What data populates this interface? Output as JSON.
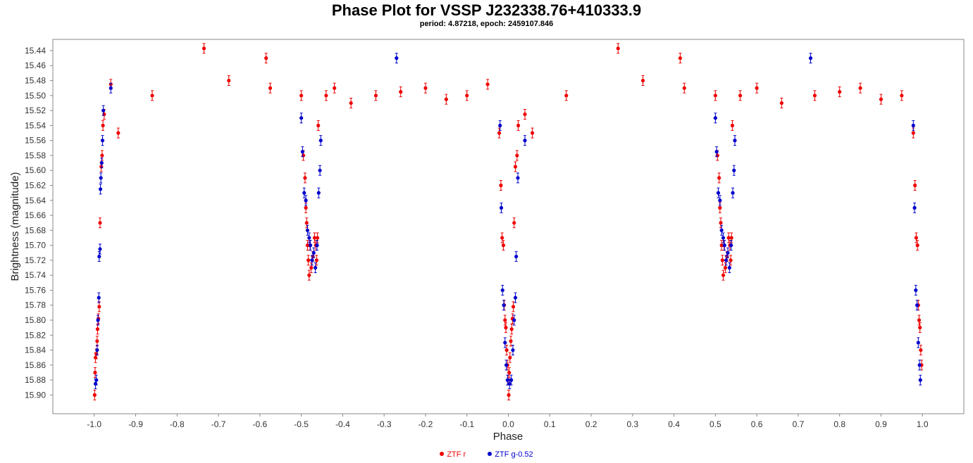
{
  "chart_data": {
    "type": "scatter",
    "title": "Phase Plot for VSSP J232338.76+410333.9",
    "subtitle": "period: 4.87218, epoch: 2459107.846",
    "xlabel": "Phase",
    "ylabel": "Brightness (magnitude)",
    "xlim": [
      -1.1,
      1.1
    ],
    "ylim": [
      15.925,
      15.425
    ],
    "y_inverted": true,
    "x_ticks": [
      "-1.0",
      "-0.9",
      "-0.8",
      "-0.7",
      "-0.6",
      "-0.5",
      "-0.4",
      "-0.3",
      "-0.2",
      "-0.1",
      "0.0",
      "0.1",
      "0.2",
      "0.3",
      "0.4",
      "0.5",
      "0.6",
      "0.7",
      "0.8",
      "0.9",
      "1.0"
    ],
    "y_ticks": [
      "15.44",
      "15.46",
      "15.48",
      "15.50",
      "15.52",
      "15.54",
      "15.56",
      "15.58",
      "15.60",
      "15.62",
      "15.64",
      "15.66",
      "15.68",
      "15.70",
      "15.72",
      "15.74",
      "15.76",
      "15.78",
      "15.80",
      "15.82",
      "15.84",
      "15.86",
      "15.88",
      "15.90"
    ],
    "grid": false,
    "legend_position": "bottom",
    "series": [
      {
        "name": "ZTF r",
        "color": "#ee0000",
        "x": [
          -0.999,
          -0.998,
          -0.997,
          -0.995,
          -0.993,
          -0.992,
          -0.99,
          -0.988,
          -0.986,
          -0.983,
          -0.981,
          -0.979,
          -0.976,
          -0.96,
          -0.942,
          -0.86,
          -0.735,
          -0.675,
          -0.585,
          -0.575,
          -0.5,
          -0.495,
          -0.491,
          -0.489,
          -0.487,
          -0.485,
          -0.483,
          -0.481,
          -0.479,
          -0.476,
          -0.472,
          -0.468,
          -0.465,
          -0.463,
          -0.461,
          -0.459,
          -0.44,
          -0.42,
          -0.38,
          -0.32,
          -0.26,
          -0.2,
          -0.15,
          -0.1,
          -0.05,
          -0.022,
          -0.018,
          -0.015,
          -0.012,
          -0.01,
          -0.008,
          -0.006,
          -0.004,
          -0.002,
          -0.001,
          0.001,
          0.002,
          0.004,
          0.006,
          0.008,
          0.01,
          0.012,
          0.014,
          0.017,
          0.021,
          0.024,
          0.04,
          0.058,
          0.14,
          0.265,
          0.325,
          0.415,
          0.425,
          0.5,
          0.505,
          0.509,
          0.511,
          0.513,
          0.515,
          0.517,
          0.519,
          0.521,
          0.524,
          0.528,
          0.532,
          0.535,
          0.537,
          0.539,
          0.541,
          0.56,
          0.6,
          0.66,
          0.74,
          0.8,
          0.85,
          0.9,
          0.95,
          0.978,
          0.982,
          0.985,
          0.988,
          0.99,
          0.992,
          0.994,
          0.996,
          0.998
        ],
        "y": [
          15.9,
          15.87,
          15.85,
          15.845,
          15.828,
          15.812,
          15.798,
          15.782,
          15.67,
          15.595,
          15.58,
          15.54,
          15.525,
          15.485,
          15.55,
          15.5,
          15.437,
          15.48,
          15.45,
          15.49,
          15.5,
          15.58,
          15.61,
          15.65,
          15.67,
          15.7,
          15.72,
          15.74,
          15.7,
          15.73,
          15.715,
          15.69,
          15.7,
          15.72,
          15.69,
          15.54,
          15.5,
          15.49,
          15.51,
          15.5,
          15.495,
          15.49,
          15.505,
          15.5,
          15.485,
          15.55,
          15.62,
          15.69,
          15.7,
          15.78,
          15.8,
          15.81,
          15.84,
          15.86,
          15.88,
          15.9,
          15.87,
          15.85,
          15.828,
          15.812,
          15.798,
          15.782,
          15.67,
          15.595,
          15.58,
          15.54,
          15.525,
          15.55,
          15.5,
          15.437,
          15.48,
          15.45,
          15.49,
          15.5,
          15.58,
          15.61,
          15.65,
          15.67,
          15.7,
          15.72,
          15.74,
          15.7,
          15.73,
          15.715,
          15.69,
          15.7,
          15.72,
          15.69,
          15.54,
          15.5,
          15.49,
          15.51,
          15.5,
          15.495,
          15.49,
          15.505,
          15.5,
          15.55,
          15.62,
          15.69,
          15.7,
          15.78,
          15.8,
          15.81,
          15.84,
          15.86
        ]
      },
      {
        "name": "ZTF g-0.52",
        "color": "#0000cc",
        "x": [
          -0.997,
          -0.995,
          -0.993,
          -0.991,
          -0.989,
          -0.988,
          -0.986,
          -0.985,
          -0.984,
          -0.982,
          -0.98,
          -0.978,
          -0.96,
          -0.5,
          -0.497,
          -0.493,
          -0.489,
          -0.485,
          -0.481,
          -0.478,
          -0.474,
          -0.47,
          -0.466,
          -0.462,
          -0.458,
          -0.455,
          -0.453,
          -0.27,
          -0.02,
          -0.017,
          -0.014,
          -0.011,
          -0.008,
          -0.005,
          -0.002,
          0.003,
          0.007,
          0.011,
          0.014,
          0.017,
          0.019,
          0.023,
          0.04,
          0.5,
          0.503,
          0.507,
          0.511,
          0.515,
          0.519,
          0.522,
          0.526,
          0.53,
          0.534,
          0.538,
          0.542,
          0.545,
          0.547,
          0.73,
          0.978,
          0.981,
          0.984,
          0.987,
          0.99,
          0.993,
          0.995
        ],
        "y": [
          15.885,
          15.88,
          15.84,
          15.8,
          15.77,
          15.715,
          15.705,
          15.625,
          15.61,
          15.59,
          15.56,
          15.52,
          15.49,
          15.53,
          15.575,
          15.63,
          15.64,
          15.68,
          15.69,
          15.7,
          15.72,
          15.71,
          15.73,
          15.7,
          15.63,
          15.6,
          15.56,
          15.45,
          15.54,
          15.65,
          15.76,
          15.78,
          15.83,
          15.86,
          15.88,
          15.885,
          15.88,
          15.84,
          15.8,
          15.77,
          15.715,
          15.61,
          15.56,
          15.53,
          15.575,
          15.63,
          15.64,
          15.68,
          15.69,
          15.7,
          15.72,
          15.71,
          15.73,
          15.7,
          15.63,
          15.6,
          15.56,
          15.45,
          15.54,
          15.65,
          15.76,
          15.78,
          15.83,
          15.86,
          15.88
        ]
      }
    ]
  }
}
